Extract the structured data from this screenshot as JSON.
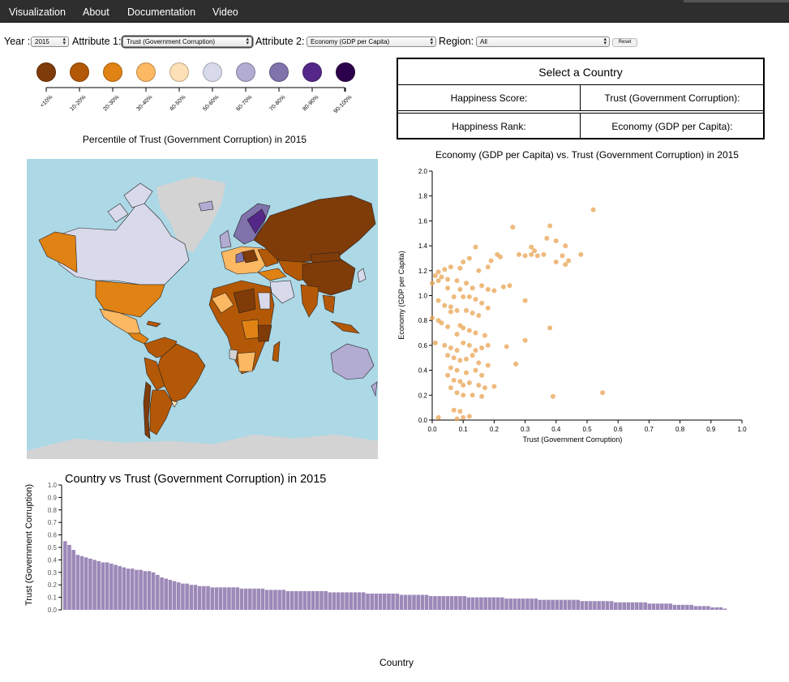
{
  "nav": {
    "items": [
      "Visualization",
      "About",
      "Documentation",
      "Video"
    ]
  },
  "controls": {
    "year_label": "Year :",
    "year_value": "2015",
    "attr1_label": "Attribute 1:",
    "attr1_value": "Trust (Government Corruption)",
    "attr2_label": "Attribute 2:",
    "attr2_value": "Economy (GDP per Capita)",
    "region_label": "Region:",
    "region_value": "All",
    "reset_label": "Reset"
  },
  "legend": {
    "labels": [
      "<10%",
      "10-20%",
      "20-30%",
      "30-40%",
      "40-50%",
      "50-60%",
      "60-70%",
      "70-80%",
      "80-90%",
      "90-100%"
    ],
    "colors": [
      "#7f3b08",
      "#b35806",
      "#e08214",
      "#fdb863",
      "#fee0b6",
      "#d8daeb",
      "#b2abd2",
      "#8073ac",
      "#542788",
      "#2d004b"
    ]
  },
  "map": {
    "title": "Percentile of Trust (Government Corruption) in 2015",
    "ocean_color": "#add8e6",
    "no_data_color": "#d3d3d3"
  },
  "info": {
    "header": "Select a Country",
    "happiness_score_label": "Happiness Score:",
    "attr1_label": "Trust (Government Corruption):",
    "happiness_rank_label": "Happiness Rank:",
    "attr2_label": "Economy (GDP per Capita):"
  },
  "scatter": {
    "title": "Economy (GDP per Capita) vs. Trust (Government Corruption) in 2015",
    "point_color": "#e8a352"
  },
  "bar": {
    "title": "Country vs Trust (Government Corruption) in 2015",
    "xlabel": "Country",
    "ylabel": "Trust (Government Corruption)",
    "bar_color": "#9c89b8"
  },
  "chart_data": [
    {
      "type": "scatter",
      "title": "Economy (GDP per Capita) vs. Trust (Government Corruption) in 2015",
      "xlabel": "Trust (Government Corruption)",
      "ylabel": "Economy (GDP per Capita)",
      "xlim": [
        0,
        1.0
      ],
      "ylim": [
        0,
        2.0
      ],
      "xticks": [
        "0.0",
        "0.1",
        "0.2",
        "0.3",
        "0.4",
        "0.5",
        "0.6",
        "0.7",
        "0.8",
        "0.9",
        "1.0"
      ],
      "yticks": [
        "0.0",
        "0.2",
        "0.4",
        "0.6",
        "0.8",
        "1.0",
        "1.2",
        "1.4",
        "1.6",
        "1.8",
        "2.0"
      ],
      "points": [
        [
          0.52,
          1.69
        ],
        [
          0.26,
          1.55
        ],
        [
          0.38,
          1.56
        ],
        [
          0.37,
          1.46
        ],
        [
          0.4,
          1.44
        ],
        [
          0.32,
          1.39
        ],
        [
          0.33,
          1.36
        ],
        [
          0.28,
          1.33
        ],
        [
          0.32,
          1.33
        ],
        [
          0.34,
          1.32
        ],
        [
          0.36,
          1.33
        ],
        [
          0.3,
          1.32
        ],
        [
          0.43,
          1.4
        ],
        [
          0.42,
          1.32
        ],
        [
          0.48,
          1.33
        ],
        [
          0.44,
          1.28
        ],
        [
          0.4,
          1.27
        ],
        [
          0.43,
          1.25
        ],
        [
          0.22,
          1.31
        ],
        [
          0.21,
          1.33
        ],
        [
          0.14,
          1.39
        ],
        [
          0.12,
          1.3
        ],
        [
          0.19,
          1.28
        ],
        [
          0.18,
          1.23
        ],
        [
          0.1,
          1.27
        ],
        [
          0.06,
          1.23
        ],
        [
          0.09,
          1.22
        ],
        [
          0.04,
          1.21
        ],
        [
          0.02,
          1.19
        ],
        [
          0.01,
          1.16
        ],
        [
          0.03,
          1.15
        ],
        [
          0.0,
          1.1
        ],
        [
          0.02,
          1.12
        ],
        [
          0.05,
          1.13
        ],
        [
          0.08,
          1.12
        ],
        [
          0.11,
          1.1
        ],
        [
          0.13,
          1.06
        ],
        [
          0.16,
          1.08
        ],
        [
          0.18,
          1.05
        ],
        [
          0.2,
          1.04
        ],
        [
          0.23,
          1.07
        ],
        [
          0.25,
          1.08
        ],
        [
          0.05,
          1.06
        ],
        [
          0.09,
          1.05
        ],
        [
          0.07,
          0.99
        ],
        [
          0.1,
          0.99
        ],
        [
          0.12,
          0.99
        ],
        [
          0.14,
          0.97
        ],
        [
          0.16,
          0.94
        ],
        [
          0.18,
          0.9
        ],
        [
          0.3,
          0.96
        ],
        [
          0.02,
          0.96
        ],
        [
          0.04,
          0.92
        ],
        [
          0.06,
          0.91
        ],
        [
          0.08,
          0.88
        ],
        [
          0.11,
          0.88
        ],
        [
          0.13,
          0.86
        ],
        [
          0.15,
          0.84
        ],
        [
          0.06,
          0.87
        ],
        [
          0.0,
          0.82
        ],
        [
          0.02,
          0.8
        ],
        [
          0.03,
          0.78
        ],
        [
          0.05,
          0.75
        ],
        [
          0.09,
          0.76
        ],
        [
          0.1,
          0.74
        ],
        [
          0.12,
          0.72
        ],
        [
          0.14,
          0.7
        ],
        [
          0.08,
          0.69
        ],
        [
          0.17,
          0.68
        ],
        [
          0.38,
          0.74
        ],
        [
          0.3,
          0.64
        ],
        [
          0.01,
          0.62
        ],
        [
          0.04,
          0.6
        ],
        [
          0.06,
          0.58
        ],
        [
          0.08,
          0.56
        ],
        [
          0.1,
          0.62
        ],
        [
          0.12,
          0.6
        ],
        [
          0.14,
          0.56
        ],
        [
          0.16,
          0.58
        ],
        [
          0.18,
          0.6
        ],
        [
          0.24,
          0.59
        ],
        [
          0.05,
          0.52
        ],
        [
          0.07,
          0.5
        ],
        [
          0.09,
          0.48
        ],
        [
          0.11,
          0.49
        ],
        [
          0.13,
          0.52
        ],
        [
          0.15,
          0.46
        ],
        [
          0.18,
          0.44
        ],
        [
          0.27,
          0.45
        ],
        [
          0.06,
          0.42
        ],
        [
          0.08,
          0.4
        ],
        [
          0.11,
          0.38
        ],
        [
          0.14,
          0.4
        ],
        [
          0.16,
          0.36
        ],
        [
          0.05,
          0.36
        ],
        [
          0.07,
          0.32
        ],
        [
          0.09,
          0.31
        ],
        [
          0.1,
          0.28
        ],
        [
          0.12,
          0.3
        ],
        [
          0.15,
          0.28
        ],
        [
          0.17,
          0.26
        ],
        [
          0.2,
          0.27
        ],
        [
          0.06,
          0.26
        ],
        [
          0.08,
          0.22
        ],
        [
          0.1,
          0.2
        ],
        [
          0.13,
          0.2
        ],
        [
          0.16,
          0.19
        ],
        [
          0.39,
          0.19
        ],
        [
          0.55,
          0.22
        ],
        [
          0.07,
          0.08
        ],
        [
          0.09,
          0.07
        ],
        [
          0.1,
          0.02
        ],
        [
          0.08,
          0.01
        ],
        [
          0.12,
          0.03
        ],
        [
          0.02,
          0.02
        ],
        [
          0.15,
          1.2
        ]
      ]
    },
    {
      "type": "bar",
      "title": "Country vs Trust (Government Corruption) in 2015",
      "xlabel": "Country",
      "ylabel": "Trust (Government Corruption)",
      "ylim": [
        0,
        1.0
      ],
      "yticks": [
        "0.0",
        "0.1",
        "0.2",
        "0.3",
        "0.4",
        "0.5",
        "0.6",
        "0.7",
        "0.8",
        "0.9",
        "1.0"
      ],
      "values": [
        0.55,
        0.52,
        0.48,
        0.44,
        0.43,
        0.42,
        0.41,
        0.4,
        0.39,
        0.38,
        0.38,
        0.37,
        0.36,
        0.35,
        0.34,
        0.33,
        0.33,
        0.32,
        0.32,
        0.31,
        0.31,
        0.3,
        0.28,
        0.26,
        0.25,
        0.24,
        0.23,
        0.22,
        0.21,
        0.21,
        0.2,
        0.2,
        0.19,
        0.19,
        0.19,
        0.18,
        0.18,
        0.18,
        0.18,
        0.18,
        0.18,
        0.18,
        0.17,
        0.17,
        0.17,
        0.17,
        0.17,
        0.17,
        0.16,
        0.16,
        0.16,
        0.16,
        0.16,
        0.15,
        0.15,
        0.15,
        0.15,
        0.15,
        0.15,
        0.15,
        0.15,
        0.15,
        0.15,
        0.14,
        0.14,
        0.14,
        0.14,
        0.14,
        0.14,
        0.14,
        0.14,
        0.14,
        0.13,
        0.13,
        0.13,
        0.13,
        0.13,
        0.13,
        0.13,
        0.13,
        0.12,
        0.12,
        0.12,
        0.12,
        0.12,
        0.12,
        0.12,
        0.11,
        0.11,
        0.11,
        0.11,
        0.11,
        0.11,
        0.11,
        0.11,
        0.11,
        0.1,
        0.1,
        0.1,
        0.1,
        0.1,
        0.1,
        0.1,
        0.1,
        0.1,
        0.09,
        0.09,
        0.09,
        0.09,
        0.09,
        0.09,
        0.09,
        0.09,
        0.08,
        0.08,
        0.08,
        0.08,
        0.08,
        0.08,
        0.08,
        0.08,
        0.08,
        0.08,
        0.07,
        0.07,
        0.07,
        0.07,
        0.07,
        0.07,
        0.07,
        0.07,
        0.06,
        0.06,
        0.06,
        0.06,
        0.06,
        0.06,
        0.06,
        0.06,
        0.05,
        0.05,
        0.05,
        0.05,
        0.05,
        0.05,
        0.04,
        0.04,
        0.04,
        0.04,
        0.04,
        0.03,
        0.03,
        0.03,
        0.03,
        0.02,
        0.02,
        0.02,
        0.01
      ]
    }
  ]
}
